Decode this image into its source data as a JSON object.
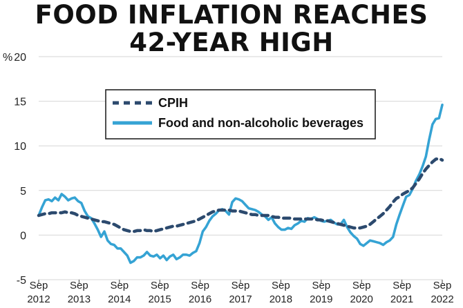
{
  "title_lines": [
    "FOOD INFLATION REACHES",
    "42-YEAR HIGH"
  ],
  "chart_data": {
    "type": "line",
    "title": "FOOD INFLATION REACHES 42-YEAR HIGH",
    "ylabel": "%",
    "ylim": [
      -5,
      20
    ],
    "yticks": [
      "-5",
      "0",
      "5",
      "10",
      "15",
      "20"
    ],
    "xticks": [
      {
        "top": "Sep",
        "bottom": "2012",
        "t": 0
      },
      {
        "top": "Sep",
        "bottom": "2013",
        "t": 12
      },
      {
        "top": "Sep",
        "bottom": "2014",
        "t": 24
      },
      {
        "top": "Sep",
        "bottom": "2015",
        "t": 36
      },
      {
        "top": "Sep",
        "bottom": "2016",
        "t": 48
      },
      {
        "top": "Sep",
        "bottom": "2017",
        "t": 60
      },
      {
        "top": "Sep",
        "bottom": "2018",
        "t": 72
      },
      {
        "top": "Sep",
        "bottom": "2019",
        "t": 84
      },
      {
        "top": "Sep",
        "bottom": "2020",
        "t": 96
      },
      {
        "top": "Sep",
        "bottom": "2021",
        "t": 108
      },
      {
        "top": "Sep",
        "bottom": "2022",
        "t": 120
      }
    ],
    "legend_position": "top-left",
    "grid": "horizontal",
    "series": [
      {
        "name": "CPIH",
        "color": "#2c4a6e",
        "style": "dashed",
        "values": [
          2.2,
          2.3,
          2.4,
          2.4,
          2.5,
          2.5,
          2.5,
          2.5,
          2.6,
          2.5,
          2.5,
          2.4,
          2.2,
          2.1,
          2.0,
          1.9,
          1.8,
          1.7,
          1.6,
          1.5,
          1.5,
          1.4,
          1.3,
          1.2,
          1.0,
          0.8,
          0.6,
          0.5,
          0.4,
          0.4,
          0.5,
          0.5,
          0.6,
          0.5,
          0.5,
          0.4,
          0.5,
          0.6,
          0.7,
          0.8,
          0.9,
          1.0,
          1.0,
          1.1,
          1.2,
          1.3,
          1.4,
          1.5,
          1.6,
          1.8,
          2.0,
          2.2,
          2.4,
          2.6,
          2.7,
          2.8,
          2.8,
          2.8,
          2.8,
          2.7,
          2.7,
          2.7,
          2.6,
          2.5,
          2.4,
          2.3,
          2.3,
          2.2,
          2.2,
          2.2,
          2.2,
          2.1,
          2.0,
          2.0,
          1.9,
          1.9,
          1.9,
          1.9,
          1.8,
          1.8,
          1.8,
          1.8,
          1.8,
          1.8,
          1.8,
          1.7,
          1.7,
          1.6,
          1.6,
          1.5,
          1.4,
          1.3,
          1.2,
          1.1,
          1.0,
          0.9,
          0.8,
          0.8,
          0.8,
          0.9,
          1.0,
          1.2,
          1.5,
          1.8,
          2.1,
          2.4,
          2.8,
          3.2,
          3.7,
          4.1,
          4.3,
          4.6,
          4.8,
          5.0,
          5.3,
          5.8,
          6.3,
          6.9,
          7.4,
          7.8,
          8.2,
          8.5,
          8.6,
          8.4
        ]
      },
      {
        "name": "Food and non-alcoholic beverages",
        "color": "#35a3d4",
        "style": "solid",
        "values": [
          2.2,
          3.1,
          3.9,
          4.0,
          3.8,
          4.2,
          3.9,
          4.6,
          4.3,
          3.9,
          4.1,
          4.2,
          3.8,
          3.6,
          2.7,
          2.1,
          1.9,
          1.3,
          0.6,
          -0.2,
          0.4,
          -0.6,
          -1.0,
          -1.1,
          -1.5,
          -1.5,
          -1.9,
          -2.3,
          -3.1,
          -2.9,
          -2.5,
          -2.5,
          -2.3,
          -1.9,
          -2.3,
          -2.4,
          -2.2,
          -2.6,
          -2.3,
          -2.8,
          -2.4,
          -2.2,
          -2.7,
          -2.5,
          -2.2,
          -2.2,
          -2.3,
          -2.0,
          -1.8,
          -0.9,
          0.4,
          0.9,
          1.6,
          2.1,
          2.4,
          2.8,
          2.9,
          2.7,
          2.3,
          3.7,
          4.1,
          4.0,
          3.8,
          3.4,
          3.0,
          2.9,
          2.8,
          2.6,
          2.3,
          2.1,
          1.7,
          2.0,
          1.3,
          0.9,
          0.6,
          0.6,
          0.8,
          0.7,
          1.1,
          1.3,
          1.6,
          1.5,
          1.9,
          1.8,
          2.0,
          1.8,
          1.6,
          1.5,
          1.6,
          1.7,
          1.4,
          1.2,
          1.2,
          1.7,
          0.9,
          0.3,
          -0.1,
          -0.4,
          -1.0,
          -1.2,
          -0.9,
          -0.6,
          -0.7,
          -0.8,
          -0.9,
          -1.1,
          -0.8,
          -0.6,
          -0.2,
          1.2,
          2.3,
          3.3,
          4.3,
          4.5,
          5.2,
          6.1,
          6.8,
          7.7,
          8.8,
          10.7,
          12.4,
          13.0,
          13.1,
          14.6
        ]
      }
    ]
  }
}
